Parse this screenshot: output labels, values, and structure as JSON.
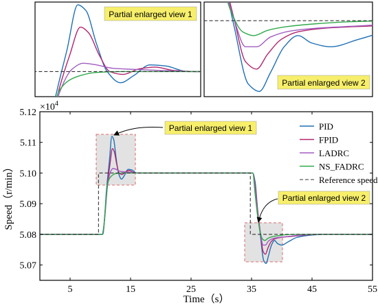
{
  "chart_data": [
    {
      "type": "line",
      "panel": "main",
      "xlabel": "Time（s）",
      "ylabel": "Speed（r/min）",
      "y_multiplier": "×10",
      "y_multiplier_exp": "4",
      "xlim": [
        0,
        55
      ],
      "ylim": [
        5.065,
        5.12
      ],
      "xticks": [
        "5",
        "15",
        "25",
        "35",
        "45",
        "55"
      ],
      "xtick_values": [
        5,
        15,
        25,
        35,
        45,
        55
      ],
      "yticks": [
        "5.07",
        "5.08",
        "5.09",
        "5.10",
        "5.11",
        "5.12"
      ],
      "ytick_values": [
        5.07,
        5.08,
        5.09,
        5.1,
        5.11,
        5.12
      ],
      "grid": false,
      "legend_position": "top-right",
      "series": [
        {
          "name": "PID",
          "color": "#1f6fb4",
          "points": [
            [
              0,
              5.08
            ],
            [
              10.3,
              5.08
            ],
            [
              10.6,
              5.083
            ],
            [
              11.0,
              5.094
            ],
            [
              11.5,
              5.104
            ],
            [
              11.9,
              5.112
            ],
            [
              12.2,
              5.111
            ],
            [
              12.6,
              5.105
            ],
            [
              13.0,
              5.1
            ],
            [
              13.5,
              5.098
            ],
            [
              14.0,
              5.0993
            ],
            [
              14.6,
              5.1012
            ],
            [
              15.2,
              5.101
            ],
            [
              16.0,
              5.1
            ],
            [
              35.2,
              5.1
            ],
            [
              35.6,
              5.097
            ],
            [
              36.0,
              5.088
            ],
            [
              36.5,
              5.079
            ],
            [
              37.0,
              5.0715
            ],
            [
              37.4,
              5.0705
            ],
            [
              37.8,
              5.073
            ],
            [
              38.3,
              5.0765
            ],
            [
              38.8,
              5.078
            ],
            [
              39.3,
              5.077
            ],
            [
              40.0,
              5.0765
            ],
            [
              41.0,
              5.0775
            ],
            [
              42.5,
              5.079
            ],
            [
              44.5,
              5.0797
            ],
            [
              47.0,
              5.08
            ],
            [
              55,
              5.08
            ]
          ]
        },
        {
          "name": "FPID",
          "color": "#b0246e",
          "points": [
            [
              0,
              5.08
            ],
            [
              10.4,
              5.08
            ],
            [
              10.7,
              5.085
            ],
            [
              11.1,
              5.095
            ],
            [
              11.6,
              5.103
            ],
            [
              12.0,
              5.108
            ],
            [
              12.3,
              5.107
            ],
            [
              12.7,
              5.103
            ],
            [
              13.1,
              5.1
            ],
            [
              13.6,
              5.0995
            ],
            [
              14.2,
              5.1005
            ],
            [
              14.8,
              5.1008
            ],
            [
              15.5,
              5.1002
            ],
            [
              16.5,
              5.1
            ],
            [
              35.2,
              5.1
            ],
            [
              35.6,
              5.096
            ],
            [
              36.0,
              5.088
            ],
            [
              36.5,
              5.08
            ],
            [
              36.9,
              5.0745
            ],
            [
              37.3,
              5.0735
            ],
            [
              37.7,
              5.0755
            ],
            [
              38.2,
              5.0775
            ],
            [
              38.8,
              5.0785
            ],
            [
              39.8,
              5.079
            ],
            [
              41.5,
              5.0793
            ],
            [
              43.5,
              5.0797
            ],
            [
              46.0,
              5.08
            ],
            [
              55,
              5.08
            ]
          ]
        },
        {
          "name": "LADRC",
          "color": "#a05cc0",
          "points": [
            [
              0,
              5.08
            ],
            [
              10.4,
              5.08
            ],
            [
              10.8,
              5.087
            ],
            [
              11.2,
              5.096
            ],
            [
              11.7,
              5.1005
            ],
            [
              12.1,
              5.1015
            ],
            [
              12.6,
              5.1012
            ],
            [
              13.2,
              5.1006
            ],
            [
              14.0,
              5.1004
            ],
            [
              15.0,
              5.1002
            ],
            [
              16.5,
              5.1
            ],
            [
              35.2,
              5.1
            ],
            [
              35.6,
              5.095
            ],
            [
              36.0,
              5.087
            ],
            [
              36.5,
              5.08
            ],
            [
              36.9,
              5.0765
            ],
            [
              37.3,
              5.0765
            ],
            [
              37.8,
              5.0778
            ],
            [
              38.5,
              5.0786
            ],
            [
              39.5,
              5.079
            ],
            [
              41.0,
              5.0793
            ],
            [
              43.0,
              5.0797
            ],
            [
              45.0,
              5.08
            ],
            [
              55,
              5.08
            ]
          ]
        },
        {
          "name": "NS_FADRC",
          "color": "#2ea84a",
          "points": [
            [
              0,
              5.08
            ],
            [
              10.4,
              5.08
            ],
            [
              10.8,
              5.088
            ],
            [
              11.2,
              5.0965
            ],
            [
              11.6,
              5.0985
            ],
            [
              12.0,
              5.0993
            ],
            [
              12.5,
              5.0998
            ],
            [
              13.5,
              5.1
            ],
            [
              35.2,
              5.1
            ],
            [
              35.6,
              5.093
            ],
            [
              36.0,
              5.086
            ],
            [
              36.4,
              5.081
            ],
            [
              36.8,
              5.0785
            ],
            [
              37.2,
              5.078
            ],
            [
              37.7,
              5.0787
            ],
            [
              38.4,
              5.0792
            ],
            [
              39.5,
              5.0796
            ],
            [
              41.0,
              5.0799
            ],
            [
              43.0,
              5.08
            ],
            [
              55,
              5.08
            ]
          ]
        },
        {
          "name": "Reference speed",
          "color": "#333333",
          "dashed": true,
          "points": [
            [
              0,
              5.08
            ],
            [
              9.7,
              5.08
            ],
            [
              9.7,
              5.1
            ],
            [
              34.8,
              5.1
            ],
            [
              34.8,
              5.08
            ],
            [
              55,
              5.08
            ]
          ]
        }
      ],
      "annotations": [
        {
          "text": "Partial enlarged view 1"
        },
        {
          "text": "Partial enlarged view 2"
        }
      ]
    },
    {
      "type": "line",
      "panel": "inset-1",
      "label": "Partial enlarged view 1",
      "xlim": [
        10.3,
        16.5
      ],
      "ylim": [
        5.0955,
        5.1125
      ]
    },
    {
      "type": "line",
      "panel": "inset-2",
      "label": "Partial enlarged view 2",
      "xlim": [
        35.4,
        41.5
      ],
      "ylim": [
        5.0698,
        5.0825
      ]
    }
  ]
}
